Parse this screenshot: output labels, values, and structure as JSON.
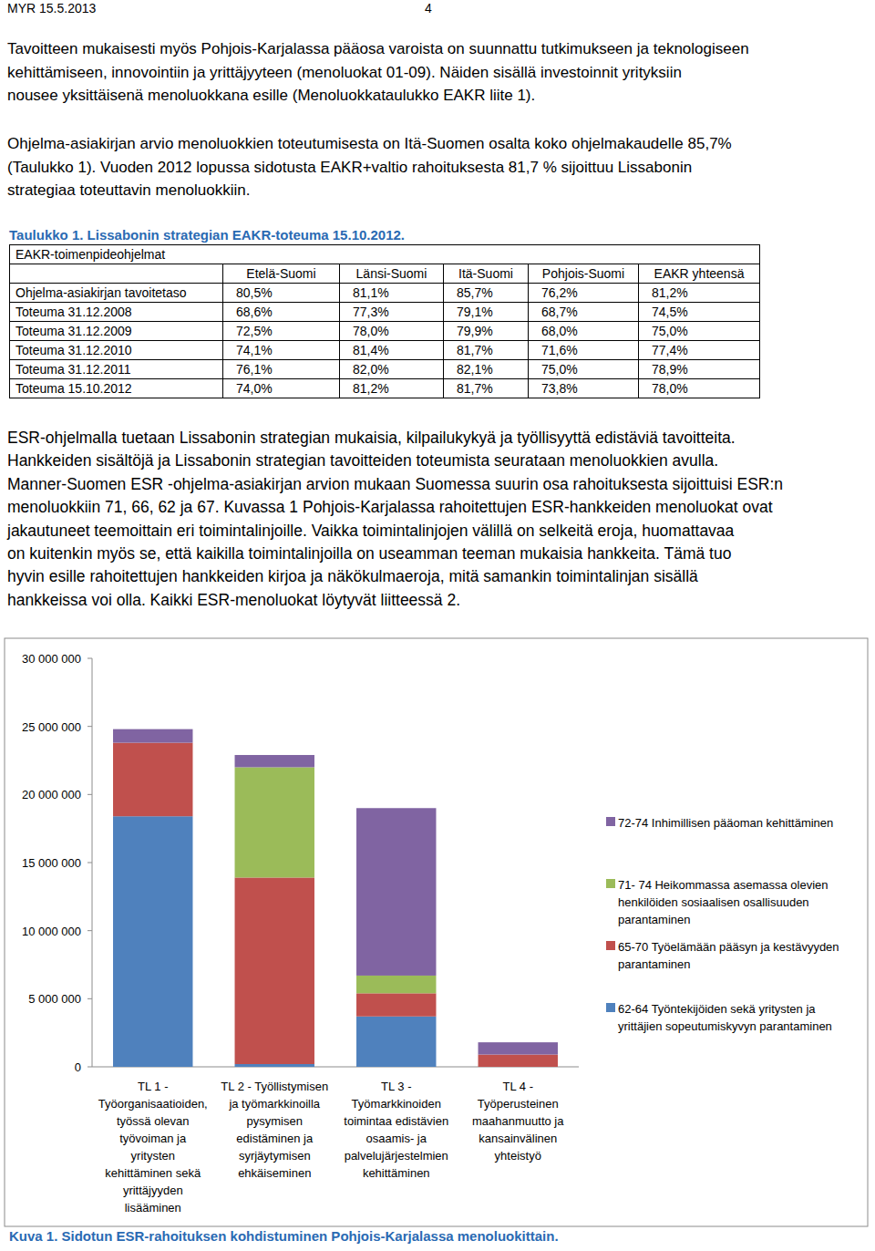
{
  "header": {
    "left": "MYR 15.5.2013",
    "page": "4"
  },
  "intro": [
    {
      "lines": [
        "Tavoitteen mukaisesti myös Pohjois-Karjalassa pääosa varoista on suunnattu tutkimukseen ja teknologiseen",
        "kehittämiseen, innovointiin ja yrittäjyyteen (menoluokat 01-09). Näiden sisällä investoinnit yrityksiin",
        "nousee yksittäisenä menoluokkana esille (Menoluokkataulukko EAKR liite 1)."
      ]
    },
    {
      "lines": [
        "Ohjelma-asiakirjan arvio menoluokkien toteutumisesta on Itä-Suomen osalta koko ohjelmakaudelle 85,7%",
        "(Taulukko 1). Vuoden 2012 lopussa sidotusta EAKR+valtio rahoituksesta 81,7 % sijoittuu Lissabonin",
        "strategiaa toteuttavin menoluokkiin."
      ]
    }
  ],
  "table": {
    "title": "Taulukko 1. Lissabonin strategian EAKR-toteuma 15.10.2012.",
    "header_label": "EAKR-toimenpideohjelmat",
    "columns": [
      "Etelä-Suomi",
      "Länsi-Suomi",
      "Itä-Suomi",
      "Pohjois-Suomi",
      "EAKR yhteensä"
    ],
    "rows": [
      {
        "label": "Ohjelma-asiakirjan tavoitetaso",
        "values": [
          "80,5%",
          "81,1%",
          "85,7%",
          "76,2%",
          "81,2%"
        ]
      },
      {
        "label": "Toteuma 31.12.2008",
        "values": [
          "68,6%",
          "77,3%",
          "79,1%",
          "68,7%",
          "74,5%"
        ]
      },
      {
        "label": "Toteuma 31.12.2009",
        "values": [
          "72,5%",
          "78,0%",
          "79,9%",
          "68,0%",
          "75,0%"
        ]
      },
      {
        "label": "Toteuma 31.12.2010",
        "values": [
          "74,1%",
          "81,4%",
          "81,7%",
          "71,6%",
          "77,4%"
        ]
      },
      {
        "label": "Toteuma 31.12.2011",
        "values": [
          "76,1%",
          "82,0%",
          "82,1%",
          "75,0%",
          "78,9%"
        ]
      },
      {
        "label": "Toteuma 15.10.2012",
        "values": [
          "74,0%",
          "81,2%",
          "81,7%",
          "73,8%",
          "78,0%"
        ]
      }
    ]
  },
  "body": {
    "lines": [
      "ESR-ohjelmalla tuetaan Lissabonin strategian mukaisia, kilpailukykyä ja työllisyyttä edistäviä tavoitteita.",
      "Hankkeiden sisältöjä ja Lissabonin strategian tavoitteiden toteumista seurataan menoluokkien avulla.",
      "Manner-Suomen ESR -ohjelma-asiakirjan arvion mukaan Suomessa suurin osa rahoituksesta sijoittuisi ESR:n",
      "menoluokkiin 71, 66, 62 ja 67. Kuvassa 1 Pohjois-Karjalassa rahoitettujen ESR-hankkeiden menoluokat ovat",
      "jakautuneet teemoittain eri toimintalinjoille. Vaikka toimintalinjojen välillä on selkeitä eroja, huomattavaa",
      "on kuitenkin myös se, että kaikilla toimintalinjoilla on useamman teeman mukaisia hankkeita. Tämä tuo",
      "hyvin esille rahoitettujen hankkeiden kirjoa ja näkökulmaeroja, mitä samankin toimintalinjan sisällä",
      "hankkeissa voi olla. Kaikki ESR-menoluokat löytyvät liitteessä 2."
    ]
  },
  "chart_data": {
    "type": "bar",
    "stacked": true,
    "grid": false,
    "legend": "right",
    "categories": [
      "TL 1 -\nTyöorganisaatioiden,\ntyössä olevan\ntyövoiman ja\nyritysten\nkehittäminen sekä\nyrittäjyyden\nlisääminen",
      "TL 2 - Työllistymisen\nja työmarkkinoilla\npysymisen\nedistäminen ja\nsyrjäytymisen\nehkäiseminen",
      "TL 3 -\nTyömarkkinoiden\ntoimintaa edistävien\nosaamis- ja\npalvelujärjestelmien\nkehittäminen",
      "TL 4 -\nTyöperusteinen\nmaahanmuutto ja\nkansainvälinen\nyhteistyö"
    ],
    "series": [
      {
        "name": "62-64 Työntekijöiden sekä  yritysten ja\nyrittäjien sopeutumiskyvyn parantaminen",
        "color": "#4f81bd",
        "values": [
          18400000,
          200000,
          3700000,
          0
        ]
      },
      {
        "name": "65-70 Työelämään pääsyn ja kestävyyden\nparantaminen",
        "color": "#c0504d",
        "values": [
          5400000,
          13700000,
          1700000,
          900000
        ]
      },
      {
        "name": "71- 74 Heikommassa asemassa olevien\nhenkilöiden sosiaalisen osallisuuden\nparantaminen",
        "color": "#9bbb59",
        "values": [
          0,
          8100000,
          1300000,
          0
        ]
      },
      {
        "name": "72-74 Inhimillisen pääoman kehittäminen",
        "color": "#8064a2",
        "values": [
          1000000,
          900000,
          12300000,
          900000
        ]
      }
    ],
    "ylim": [
      0,
      30000000
    ],
    "yticks": [
      0,
      {
        "value": 5000000,
        "label": "5 000 000"
      },
      {
        "value": 10000000,
        "label": "10 000 000"
      },
      {
        "value": 15000000,
        "label": "15 000 000"
      },
      {
        "value": 20000000,
        "label": "20 000 000"
      },
      {
        "value": 25000000,
        "label": "25 000 000"
      },
      {
        "value": 30000000,
        "label": "30 000 000"
      }
    ]
  },
  "caption": "Kuva 1. Sidotun ESR-rahoituksen kohdistuminen Pohjois-Karjalassa menoluokittain."
}
